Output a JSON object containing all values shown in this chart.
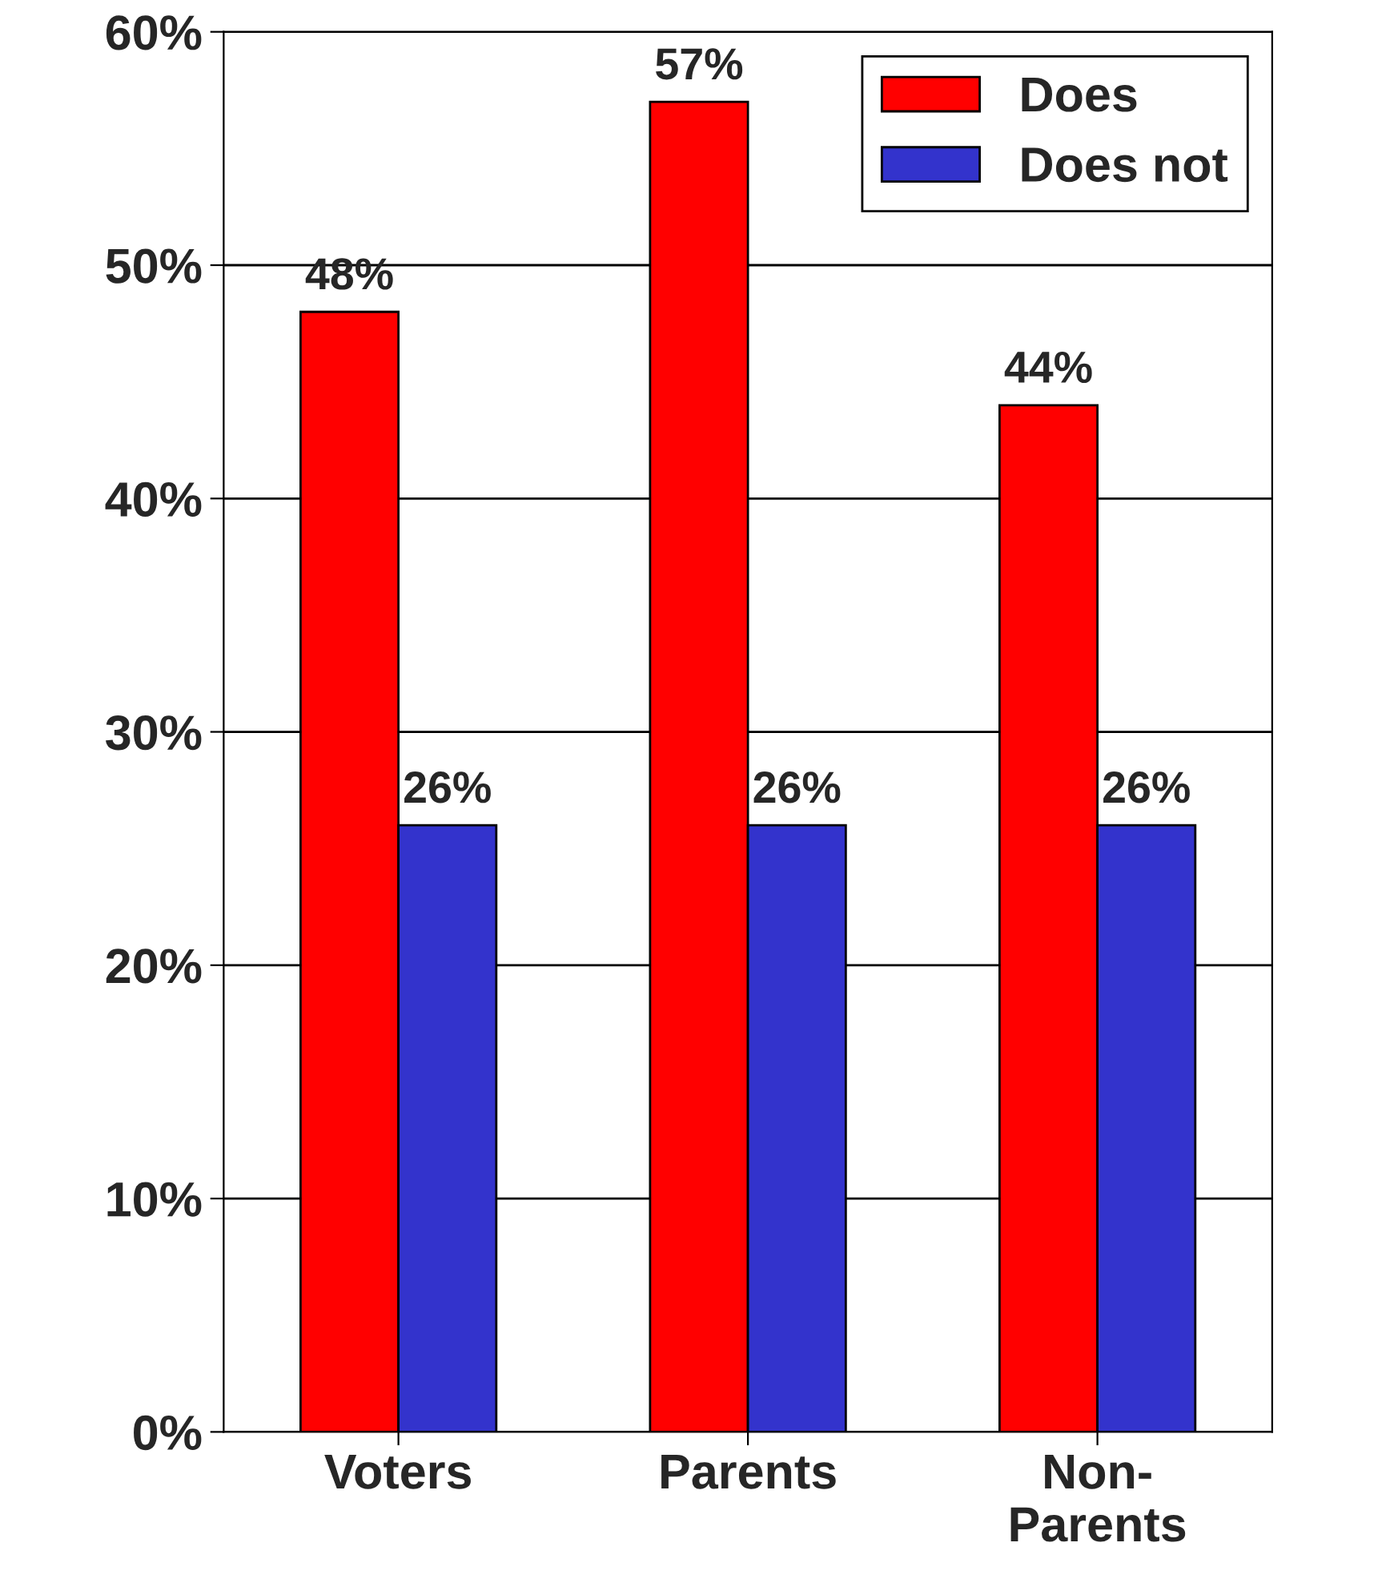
{
  "chart_data": {
    "type": "bar",
    "categories": [
      "Voters",
      "Parents",
      "Non-\nParents"
    ],
    "series": [
      {
        "name": "Does",
        "color": "#ff0000",
        "values": [
          48,
          57,
          44
        ],
        "value_labels": [
          "48%",
          "57%",
          "44%"
        ]
      },
      {
        "name": "Does not",
        "color": "#3333cc",
        "values": [
          26,
          26,
          26
        ],
        "value_labels": [
          "26%",
          "26%",
          "26%"
        ]
      }
    ],
    "ylim": [
      0,
      60
    ],
    "yticks": [
      {
        "value": 0,
        "label": "0%"
      },
      {
        "value": 10,
        "label": "10%"
      },
      {
        "value": 20,
        "label": "20%"
      },
      {
        "value": 30,
        "label": "30%"
      },
      {
        "value": 40,
        "label": "40%"
      },
      {
        "value": 50,
        "label": "50%"
      },
      {
        "value": 60,
        "label": "60%"
      }
    ],
    "grid": "y",
    "legend": "top right"
  }
}
